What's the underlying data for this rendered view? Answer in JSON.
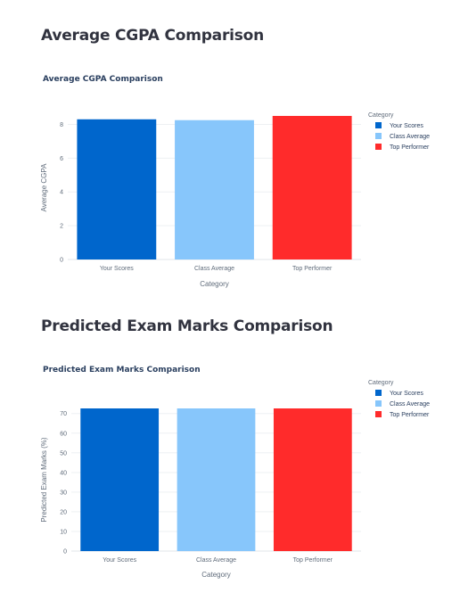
{
  "headings": {
    "cgpa": "Average CGPA Comparison",
    "marks": "Predicted Exam Marks Comparison"
  },
  "colors": {
    "Your Scores": "#0066cc",
    "Class Average": "#87c6fb",
    "Top Performer": "#ff2b2b"
  },
  "chart_data": [
    {
      "type": "bar",
      "title": "Average CGPA Comparison",
      "xlabel": "Category",
      "ylabel": "Average CGPA",
      "categories": [
        "Your Scores",
        "Class Average",
        "Top Performer"
      ],
      "values": [
        8.3,
        8.25,
        8.5
      ],
      "ylim": [
        0,
        8.5
      ],
      "yticks": [
        0,
        2,
        4,
        6,
        8
      ],
      "grid": true,
      "legend_title": "Category",
      "legend": [
        "Your Scores",
        "Class Average",
        "Top Performer"
      ],
      "legend_position": "top-right"
    },
    {
      "type": "bar",
      "title": "Predicted Exam Marks Comparison",
      "xlabel": "Category",
      "ylabel": "Predicted Exam Marks (%)",
      "categories": [
        "Your Scores",
        "Class Average",
        "Top Performer"
      ],
      "values": [
        72.6,
        72.6,
        72.6
      ],
      "ylim": [
        0,
        72.6
      ],
      "yticks": [
        0,
        10,
        20,
        30,
        40,
        50,
        60,
        70
      ],
      "grid": true,
      "legend_title": "Category",
      "legend": [
        "Your Scores",
        "Class Average",
        "Top Performer"
      ],
      "legend_position": "top-right"
    }
  ]
}
